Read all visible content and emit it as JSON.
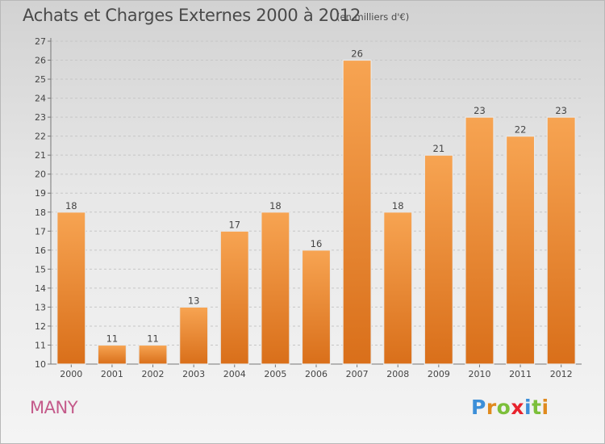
{
  "chart_data": {
    "type": "bar",
    "title": "Achats et Charges Externes 2000 à 2012",
    "subtitle": "(en milliers d'€)",
    "categories": [
      "2000",
      "2001",
      "2002",
      "2003",
      "2004",
      "2005",
      "2006",
      "2007",
      "2008",
      "2009",
      "2010",
      "2011",
      "2012"
    ],
    "values": [
      18,
      11,
      11,
      13,
      17,
      18,
      16,
      26,
      18,
      21,
      23,
      22,
      23
    ],
    "ylim": [
      10,
      27
    ],
    "yticks": [
      10,
      11,
      12,
      13,
      14,
      15,
      16,
      17,
      18,
      19,
      20,
      21,
      22,
      23,
      24,
      25,
      26,
      27
    ],
    "xlabel": "",
    "ylabel": "",
    "grid": "dashed-horizontal",
    "bar_color_top": "#f7a452",
    "bar_color_bottom": "#d96f1a"
  },
  "footer": {
    "commune": "MANY",
    "logo_letters": [
      {
        "ch": "P",
        "color": "#3d8fd8"
      },
      {
        "ch": "r",
        "color": "#e08a1e"
      },
      {
        "ch": "o",
        "color": "#7cbf3a"
      },
      {
        "ch": "x",
        "color": "#e8232d"
      },
      {
        "ch": "i",
        "color": "#3d8fd8"
      },
      {
        "ch": "t",
        "color": "#7cbf3a"
      },
      {
        "ch": "i",
        "color": "#e08a1e"
      }
    ]
  }
}
